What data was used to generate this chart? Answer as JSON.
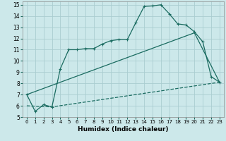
{
  "xlabel": "Humidex (Indice chaleur)",
  "bg_color": "#cce8ea",
  "grid_color": "#aacdd0",
  "line_color": "#1a6b60",
  "xlim": [
    -0.5,
    23.5
  ],
  "ylim": [
    5,
    15.3
  ],
  "xticks": [
    0,
    1,
    2,
    3,
    4,
    5,
    6,
    7,
    8,
    9,
    10,
    11,
    12,
    13,
    14,
    15,
    16,
    17,
    18,
    19,
    20,
    21,
    22,
    23
  ],
  "yticks": [
    5,
    6,
    7,
    8,
    9,
    10,
    11,
    12,
    13,
    14,
    15
  ],
  "series1_x": [
    0,
    1,
    2,
    3,
    4,
    5,
    6,
    7,
    8,
    9,
    10,
    11,
    12,
    13,
    14,
    15,
    16,
    17,
    18,
    19,
    20,
    21,
    22,
    23
  ],
  "series1_y": [
    7.0,
    5.5,
    6.1,
    5.9,
    9.3,
    11.0,
    11.0,
    11.1,
    11.1,
    11.5,
    11.8,
    11.9,
    11.9,
    13.4,
    14.85,
    14.9,
    15.0,
    14.2,
    13.3,
    13.2,
    12.6,
    11.7,
    8.6,
    8.1
  ],
  "series2_x": [
    0,
    3,
    23
  ],
  "series2_y": [
    6.0,
    5.9,
    8.1
  ],
  "series3_x": [
    0,
    20,
    23
  ],
  "series3_y": [
    7.0,
    12.5,
    8.1
  ]
}
